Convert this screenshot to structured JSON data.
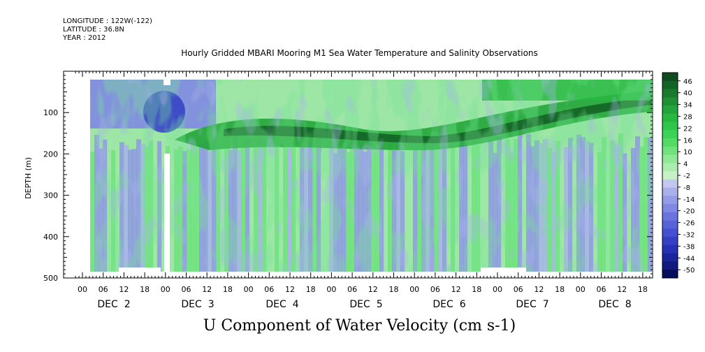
{
  "header": {
    "longitude": "LONGITUDE : 122W(-122)",
    "latitude": "LATITUDE : 36.8N",
    "year": "YEAR : 2012"
  },
  "chart_data": {
    "type": "heatmap",
    "title": "Hourly Gridded MBARI Mooring M1 Sea Water Temperature and Salinity Observations",
    "xlabel": "U Component of Water Velocity (cm s-1)",
    "ylabel": "DEPTH (m)",
    "ylim": [
      500,
      0
    ],
    "y_ticks": [
      100,
      200,
      300,
      400,
      500
    ],
    "x_hour_ticks": [
      "00",
      "06",
      "12",
      "18",
      "00",
      "06",
      "12",
      "18",
      "00",
      "06",
      "12",
      "18",
      "00",
      "06",
      "12",
      "18",
      "00",
      "06",
      "12",
      "18",
      "00",
      "06",
      "12",
      "18",
      "00",
      "06",
      "12",
      "18"
    ],
    "x_day_labels": [
      "DEC 2",
      "DEC 3",
      "DEC 4",
      "DEC 5",
      "DEC 6",
      "DEC 7",
      "DEC 8"
    ],
    "colorbar": {
      "labels": [
        "46",
        "40",
        "34",
        "28",
        "22",
        "16",
        "10",
        "4",
        "-2",
        "-8",
        "-14",
        "-20",
        "-26",
        "-32",
        "-38",
        "-44",
        "-50"
      ],
      "levels": [
        50,
        46,
        42,
        38,
        34,
        30,
        26,
        22,
        18,
        14,
        10,
        6,
        2,
        -2,
        -6,
        -10,
        -14,
        -18,
        -22,
        -26,
        -30,
        -34,
        -38,
        -42,
        -46,
        -50
      ],
      "colors": [
        "#0f4a1f",
        "#146326",
        "#1a7a2c",
        "#1e8f32",
        "#22a53a",
        "#27b841",
        "#2fc74a",
        "#3ad456",
        "#52dc66",
        "#6fe27c",
        "#8ee897",
        "#aaedaf",
        "#c6f1c6",
        "#c3c8ee",
        "#aab1ea",
        "#939ce7",
        "#7f88e3",
        "#6b74de",
        "#5762d8",
        "#4450d1",
        "#333fc4",
        "#2531b3",
        "#1a259c",
        "#101a7f",
        "#070e5c"
      ]
    }
  }
}
